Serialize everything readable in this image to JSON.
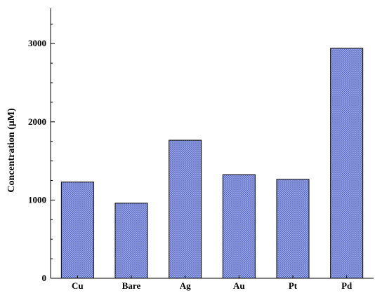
{
  "chart_data": {
    "type": "bar",
    "title": "",
    "xlabel": "",
    "ylabel": "Concentration (μM)",
    "categories": [
      "Cu",
      "Bare",
      "Ag",
      "Au",
      "Pt",
      "Pd"
    ],
    "values": [
      1230,
      960,
      1765,
      1325,
      1265,
      2940
    ],
    "ylim": [
      0,
      3450
    ],
    "yticks": [
      0,
      1000,
      2000,
      3000
    ],
    "grid": false,
    "legend": "none",
    "colors": {
      "bar_fill": "#a9b6ea",
      "bar_hatch": "#3f4fb8",
      "bar_edge": "#000000",
      "axis": "#000000"
    }
  }
}
